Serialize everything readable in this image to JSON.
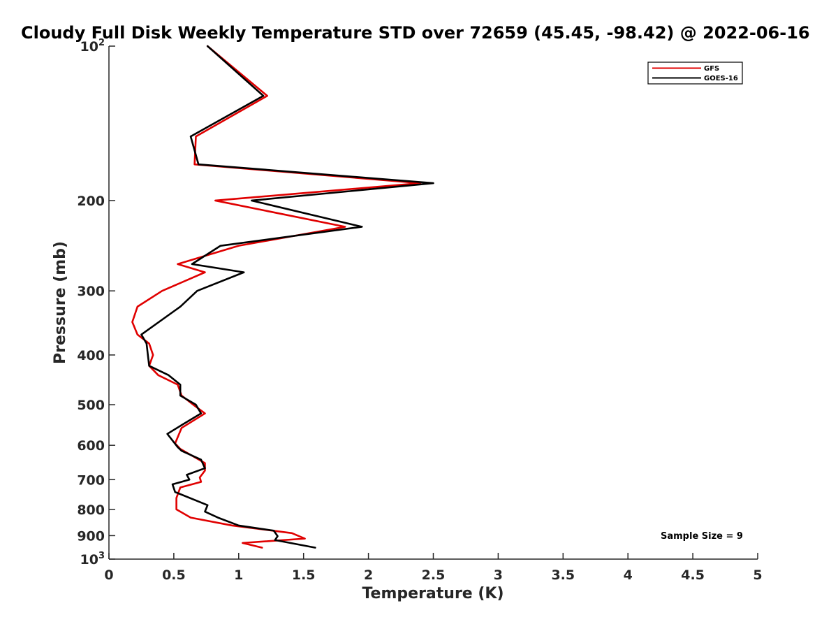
{
  "chart_data": {
    "type": "line",
    "title": "Cloudy Full Disk Weekly Temperature STD over 72659 (45.45, -98.42) @ 2022-06-16",
    "xlabel": "Temperature (K)",
    "ylabel": "Pressure (mb)",
    "xlim": [
      0,
      5
    ],
    "ylim": [
      100,
      1000
    ],
    "y_scale": "log",
    "y_reversed": true,
    "grid": false,
    "legend_position": "top-right",
    "x_ticks": [
      "0",
      "0.5",
      "1",
      "1.5",
      "2",
      "2.5",
      "3",
      "3.5",
      "4",
      "4.5",
      "5"
    ],
    "y_ticks": [
      {
        "value": 100,
        "base": "10",
        "exp": "2"
      },
      {
        "value": 200,
        "label": "200"
      },
      {
        "value": 300,
        "label": "300"
      },
      {
        "value": 400,
        "label": "400"
      },
      {
        "value": 500,
        "label": "500"
      },
      {
        "value": 600,
        "label": "600"
      },
      {
        "value": 700,
        "label": "700"
      },
      {
        "value": 800,
        "label": "800"
      },
      {
        "value": 900,
        "label": "900"
      },
      {
        "value": 1000,
        "base": "10",
        "exp": "3"
      }
    ],
    "annotation": "Sample Size = 9",
    "series": [
      {
        "name": "GFS",
        "color": "#e00000",
        "points": [
          [
            0.76,
            100
          ],
          [
            1.22,
            125
          ],
          [
            0.67,
            150
          ],
          [
            0.66,
            170
          ],
          [
            2.4,
            185
          ],
          [
            0.82,
            200
          ],
          [
            1.82,
            225
          ],
          [
            1.0,
            245
          ],
          [
            0.53,
            266
          ],
          [
            0.74,
            276
          ],
          [
            0.41,
            300
          ],
          [
            0.22,
            322
          ],
          [
            0.18,
            345
          ],
          [
            0.22,
            365
          ],
          [
            0.31,
            380
          ],
          [
            0.34,
            400
          ],
          [
            0.31,
            420
          ],
          [
            0.38,
            438
          ],
          [
            0.53,
            457
          ],
          [
            0.56,
            480
          ],
          [
            0.65,
            500
          ],
          [
            0.74,
            520
          ],
          [
            0.56,
            555
          ],
          [
            0.51,
            595
          ],
          [
            0.55,
            610
          ],
          [
            0.74,
            650
          ],
          [
            0.74,
            672
          ],
          [
            0.7,
            693
          ],
          [
            0.71,
            707
          ],
          [
            0.55,
            725
          ],
          [
            0.52,
            760
          ],
          [
            0.52,
            800
          ],
          [
            0.63,
            830
          ],
          [
            0.95,
            860
          ],
          [
            1.41,
            890
          ],
          [
            1.51,
            912
          ],
          [
            1.03,
            930
          ],
          [
            1.18,
            950
          ]
        ]
      },
      {
        "name": "GOES-16",
        "color": "#000000",
        "points": [
          [
            0.76,
            100
          ],
          [
            1.19,
            125
          ],
          [
            0.63,
            150
          ],
          [
            0.69,
            170
          ],
          [
            2.5,
            185
          ],
          [
            1.1,
            200
          ],
          [
            1.95,
            225
          ],
          [
            0.86,
            245
          ],
          [
            0.64,
            266
          ],
          [
            1.04,
            276
          ],
          [
            0.68,
            300
          ],
          [
            0.55,
            322
          ],
          [
            0.25,
            365
          ],
          [
            0.29,
            380
          ],
          [
            0.3,
            400
          ],
          [
            0.31,
            420
          ],
          [
            0.46,
            438
          ],
          [
            0.55,
            457
          ],
          [
            0.55,
            480
          ],
          [
            0.67,
            500
          ],
          [
            0.71,
            520
          ],
          [
            0.56,
            548
          ],
          [
            0.45,
            570
          ],
          [
            0.53,
            605
          ],
          [
            0.56,
            615
          ],
          [
            0.71,
            640
          ],
          [
            0.74,
            665
          ],
          [
            0.6,
            685
          ],
          [
            0.62,
            700
          ],
          [
            0.49,
            715
          ],
          [
            0.51,
            740
          ],
          [
            0.76,
            785
          ],
          [
            0.74,
            808
          ],
          [
            0.84,
            830
          ],
          [
            1.0,
            860
          ],
          [
            1.27,
            880
          ],
          [
            1.3,
            902
          ],
          [
            1.28,
            918
          ],
          [
            1.59,
            950
          ]
        ]
      }
    ]
  }
}
